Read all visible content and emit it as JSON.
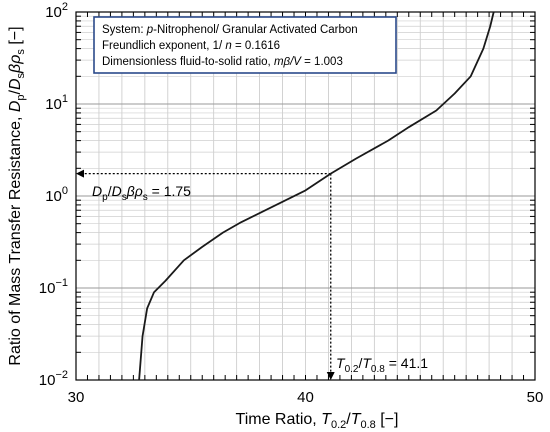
{
  "chart_data": {
    "type": "line",
    "xlabel": "Time Ratio, T0.2/T0.8 [−]",
    "ylabel": "Ratio of Mass Transfer Resistance, Dp/Dsβρs [−]",
    "xlim": [
      30,
      50
    ],
    "ylim": [
      0.01,
      100
    ],
    "y_scale": "log",
    "grid": true,
    "x_ticks": [
      {
        "value": 30,
        "label": "30"
      },
      {
        "value": 40,
        "label": "40"
      },
      {
        "value": 50,
        "label": "50"
      }
    ],
    "y_ticks": [
      {
        "value": 0.01,
        "mant": "10",
        "exp": "−2"
      },
      {
        "value": 0.1,
        "mant": "10",
        "exp": "−1"
      },
      {
        "value": 1,
        "mant": "10",
        "exp": "0"
      },
      {
        "value": 10,
        "mant": "10",
        "exp": "1"
      },
      {
        "value": 100,
        "mant": "10",
        "exp": "2"
      }
    ],
    "series": [
      {
        "x": [
          32.75,
          32.9,
          33.1,
          33.4,
          33.9,
          34.7,
          35.5,
          36.4,
          37.2,
          38.5,
          40.0,
          41.1,
          42.2,
          43.6,
          44.5,
          45.7,
          46.5,
          47.2,
          47.75,
          48.05,
          48.2
        ],
        "y": [
          0.01,
          0.03,
          0.06,
          0.09,
          0.12,
          0.2,
          0.28,
          0.4,
          0.52,
          0.75,
          1.15,
          1.75,
          2.55,
          4.0,
          5.6,
          8.5,
          13.0,
          20.0,
          40.0,
          70.0,
          100.0
        ]
      }
    ],
    "annotations": {
      "point": {
        "x": 41.1,
        "y": 1.75
      },
      "info_box": {
        "line1_prefix": "System: ",
        "line1_italic": "p",
        "line1_rest": "-Nitrophenol/ Granular Activated Carbon",
        "line2_prefix": "Freundlich exponent, 1/ ",
        "line2_italic": "n",
        "line2_rest": " = 0.1616",
        "line3_prefix": "Dimensionless fluid-to-solid ratio, ",
        "line3_italic": "mβ/V",
        "line3_rest": " = 1.003"
      },
      "y_ann": {
        "value": "= 1.75"
      },
      "x_ann": {
        "value": "= 41.1"
      }
    }
  }
}
